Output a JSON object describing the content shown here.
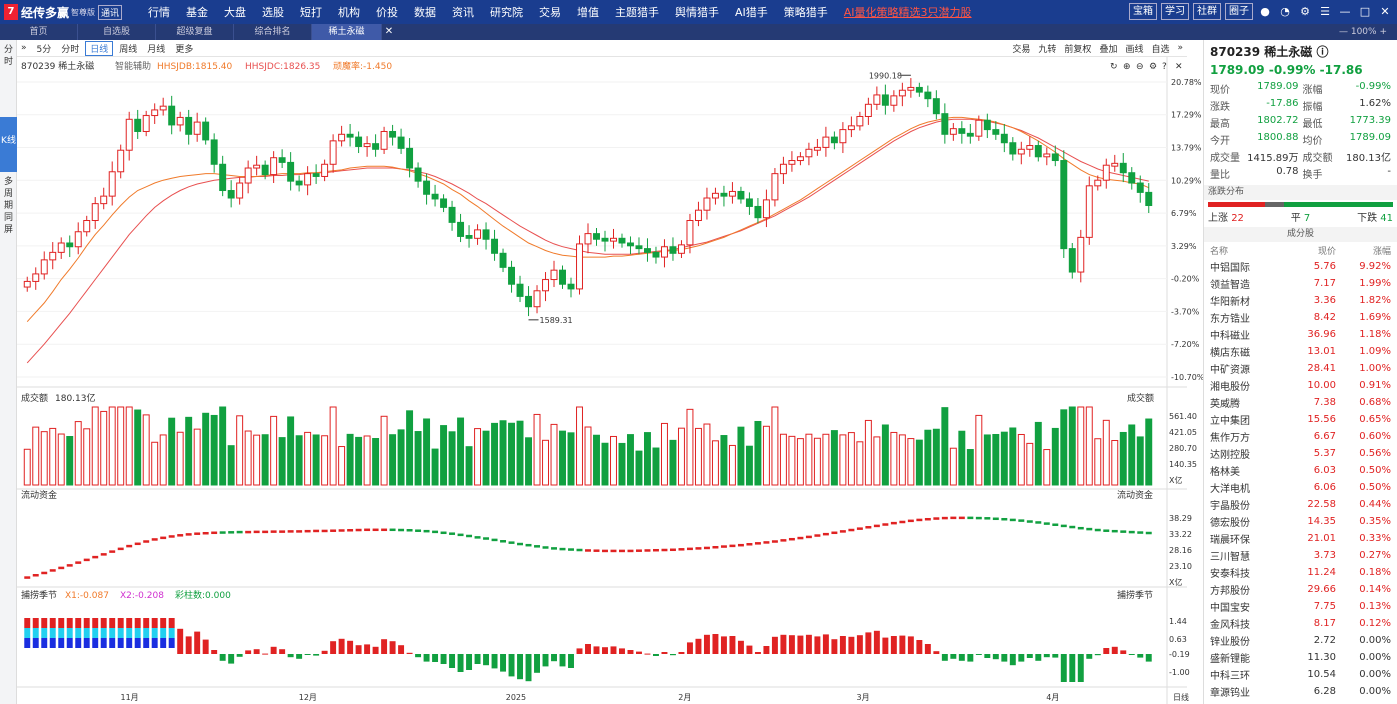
{
  "app": {
    "logo_name": "经传多赢",
    "logo_sub": "智尊版",
    "logo_tag": "通讯"
  },
  "nav": [
    "行情",
    "基金",
    "大盘",
    "选股",
    "短打",
    "机构",
    "价投",
    "数据",
    "资讯",
    "研究院",
    "交易",
    "增值",
    "主题猎手",
    "舆情猎手",
    "AI猎手",
    "策略猎手"
  ],
  "nav_hot": "AI量化策略精选3只潜力股",
  "top_buttons": [
    "宝箱",
    "学习",
    "社群",
    "圈子"
  ],
  "top_icons": [
    "user-icon",
    "bell-icon",
    "gear-icon",
    "menu-icon",
    "minimize-icon",
    "maximize-icon",
    "close-icon"
  ],
  "tabs": [
    "首页",
    "自选股",
    "超级复盘",
    "综合排名",
    "稀土永磁"
  ],
  "zoom": "100%",
  "left_tabs": [
    "分时",
    "K线",
    "多周期同屏"
  ],
  "chart_toolbar": {
    "periods": [
      "5分",
      "分时",
      "日线",
      "周线",
      "月线",
      "更多"
    ],
    "active": "日线",
    "right": [
      "交易",
      "九转",
      "前复权",
      "叠加",
      "画线",
      "自选"
    ]
  },
  "main_info": {
    "name": "870239 稀土永磁",
    "assist": "智能辅助",
    "hhsjdb": "HHSJDB:1815.40",
    "hhsjdc": "HHSJDC:1826.35",
    "zlg": "顽魔率:-1.450"
  },
  "price_axis": [
    "20.78%",
    "17.29%",
    "13.79%",
    "10.29%",
    "6.79%",
    "3.29%",
    "-0.20%",
    "-3.70%",
    "-7.20%",
    "-10.70%"
  ],
  "volume_panel": {
    "title": "成交额",
    "value": "180.13亿",
    "right_label": "成交额",
    "axis": [
      "561.40",
      "421.05",
      "280.70",
      "140.35",
      "X亿"
    ]
  },
  "flow_panel": {
    "title": "流动资金",
    "right_label": "流动资金",
    "axis": [
      "38.29",
      "33.22",
      "28.16",
      "23.10",
      "X亿"
    ]
  },
  "osc_panel": {
    "title": "捕捞季节",
    "x1": "X1:-0.087",
    "x2": "X2:-0.208",
    "bar": "彩柱数:0.000",
    "right_label": "捕捞季节",
    "axis": [
      "1.44",
      "0.63",
      "-0.19",
      "-1.00"
    ]
  },
  "date_axis": [
    "11月",
    "12月",
    "2025",
    "2月",
    "3月",
    "4月"
  ],
  "date_axis_label": "日线",
  "chart_data": {
    "type": "candlestick",
    "title": "870239 稀土永磁",
    "y_axis_percent": [
      20.78,
      17.29,
      13.79,
      10.29,
      6.79,
      3.29,
      -0.2,
      -3.7,
      -7.2,
      -10.7
    ],
    "annotations": [
      {
        "label": "1990.18",
        "type": "high"
      },
      {
        "label": "1589.31",
        "type": "low"
      }
    ],
    "closes_percent": [
      -0.5,
      0.3,
      1.8,
      2.6,
      3.6,
      3.2,
      4.8,
      6.0,
      7.8,
      8.6,
      11.2,
      13.5,
      16.8,
      15.5,
      17.2,
      17.8,
      18.2,
      16.2,
      17.0,
      15.2,
      16.5,
      14.6,
      12.0,
      9.2,
      8.4,
      10.0,
      11.6,
      11.9,
      10.9,
      12.7,
      12.2,
      10.2,
      9.8,
      11.0,
      10.7,
      12.0,
      14.5,
      15.2,
      14.9,
      13.9,
      14.2,
      13.6,
      15.5,
      14.9,
      13.7,
      11.6,
      10.2,
      8.8,
      8.3,
      7.4,
      5.8,
      4.3,
      4.1,
      5.0,
      4.0,
      2.5,
      1.0,
      -0.8,
      -2.1,
      -3.2,
      -1.5,
      -0.3,
      0.7,
      -0.8,
      -1.3,
      3.5,
      4.6,
      4.0,
      3.8,
      4.1,
      3.6,
      3.3,
      3.0,
      2.6,
      2.1,
      3.2,
      2.5,
      3.4,
      6.0,
      7.1,
      8.4,
      8.9,
      8.6,
      9.1,
      8.3,
      7.5,
      6.3,
      8.2,
      11.0,
      12.0,
      12.4,
      12.8,
      13.6,
      13.8,
      14.9,
      14.3,
      15.7,
      16.1,
      17.1,
      18.4,
      19.4,
      18.3,
      19.3,
      19.9,
      20.2,
      19.7,
      19.0,
      17.4,
      15.2,
      15.8,
      15.3,
      15.0,
      16.7,
      15.7,
      15.2,
      14.3,
      13.1,
      13.6,
      14.0,
      12.8,
      13.1,
      12.4,
      3.0,
      0.5,
      4.2,
      9.7,
      10.3,
      11.9,
      12.1,
      11.1,
      10.0,
      9.0,
      7.6
    ],
    "ma_fast_percent": [
      -4.8,
      -3.8,
      -2.8,
      -1.6,
      -0.3,
      0.8,
      2.0,
      3.3,
      4.5,
      5.5,
      6.6,
      7.6,
      8.5,
      9.2,
      9.6,
      10.0,
      10.3,
      10.5,
      10.7,
      10.8,
      10.9,
      11.0,
      11.0,
      10.9,
      10.8,
      10.7,
      10.7,
      10.7,
      10.8,
      10.9,
      11.0,
      11.0,
      11.0,
      11.1,
      11.1,
      11.2,
      11.3,
      11.4,
      11.6,
      11.7,
      11.8,
      11.8,
      11.8,
      11.7,
      11.5,
      11.3,
      11.0,
      10.7,
      10.3,
      9.9,
      9.3,
      8.8,
      8.1,
      7.5,
      6.8,
      6.1,
      5.4,
      4.8,
      4.2,
      3.6,
      3.2,
      2.8,
      2.5,
      2.3,
      2.2,
      2.1,
      2.1,
      2.1,
      2.1,
      2.2,
      2.2,
      2.3,
      2.4,
      2.5,
      2.6,
      2.7,
      2.8,
      2.9,
      3.1,
      3.3,
      3.6,
      3.9,
      4.2,
      4.6,
      5.0,
      5.4,
      5.8,
      6.2,
      6.7,
      7.2,
      7.7,
      8.2,
      8.8,
      9.4,
      10.0,
      10.6,
      11.2,
      11.8,
      12.4,
      13.0,
      13.6,
      14.2,
      14.8,
      15.3,
      15.8,
      16.2,
      16.5,
      16.7,
      16.9,
      17.0,
      17.0,
      16.9,
      16.8,
      16.7,
      16.5,
      16.2,
      15.9,
      15.5,
      15.0,
      14.5,
      13.9,
      13.3,
      12.6,
      12.0,
      11.4,
      10.9,
      10.6,
      10.4,
      10.3,
      10.2,
      10.0,
      9.9,
      9.5
    ],
    "ma_slow_percent": [
      -9.2,
      -8.2,
      -7.2,
      -6.1,
      -5.0,
      -3.9,
      -2.7,
      -1.5,
      -0.3,
      0.9,
      2.1,
      3.3,
      4.5,
      5.5,
      6.5,
      7.4,
      8.1,
      8.7,
      9.2,
      9.6,
      9.9,
      10.1,
      10.3,
      10.4,
      10.5,
      10.6,
      10.6,
      10.7,
      10.7,
      10.8,
      10.8,
      10.9,
      10.9,
      11.0,
      11.1,
      11.1,
      11.2,
      11.3,
      11.4,
      11.5,
      11.6,
      11.6,
      11.6,
      11.6,
      11.5,
      11.4,
      11.2,
      11.0,
      10.7,
      10.3,
      9.9,
      9.4,
      8.9,
      8.3,
      7.8,
      7.2,
      6.6,
      6.0,
      5.4,
      4.9,
      4.4,
      3.9,
      3.5,
      3.2,
      3.0,
      2.8,
      2.6,
      2.5,
      2.4,
      2.4,
      2.4,
      2.4,
      2.5,
      2.6,
      2.7,
      2.8,
      2.9,
      3.1,
      3.3,
      3.5,
      3.7,
      4.0,
      4.3,
      4.6,
      4.9,
      5.3,
      5.7,
      6.1,
      6.5,
      7.0,
      7.5,
      8.0,
      8.5,
      9.1,
      9.7,
      10.3,
      10.9,
      11.5,
      12.1,
      12.7,
      13.3,
      13.9,
      14.5,
      15.0,
      15.5,
      15.9,
      16.2,
      16.5,
      16.7,
      16.8,
      16.8,
      16.8,
      16.7,
      16.6,
      16.4,
      16.2,
      15.9,
      15.6,
      15.2,
      14.8,
      14.3,
      13.8,
      13.3,
      12.8,
      12.3,
      11.9,
      11.5,
      11.2,
      11.0,
      10.8,
      10.6,
      10.4,
      10.2
    ]
  },
  "stock": {
    "name": "870239 稀土永磁",
    "price": "1789.09",
    "change": "-0.99%",
    "change_abs": "-17.86"
  },
  "quote_rows": [
    [
      {
        "l": "现价",
        "v": "1789.09",
        "c": "green"
      },
      {
        "l": "涨幅",
        "v": "-0.99%",
        "c": "green"
      }
    ],
    [
      {
        "l": "涨跌",
        "v": "-17.86",
        "c": "green"
      },
      {
        "l": "振幅",
        "v": "1.62%",
        "c": ""
      }
    ],
    [
      {
        "l": "最高",
        "v": "1802.72",
        "c": "green"
      },
      {
        "l": "最低",
        "v": "1773.39",
        "c": "green"
      }
    ],
    [
      {
        "l": "今开",
        "v": "1800.88",
        "c": "green"
      },
      {
        "l": "均价",
        "v": "1789.09",
        "c": "green"
      }
    ],
    [
      {
        "l": "成交量",
        "v": "1415.89万",
        "c": ""
      },
      {
        "l": "成交额",
        "v": "180.13亿",
        "c": ""
      }
    ],
    [
      {
        "l": "量比",
        "v": "0.78",
        "c": ""
      },
      {
        "l": "换手",
        "v": "-",
        "c": ""
      }
    ]
  ],
  "distribution": {
    "title": "涨跌分布",
    "up_label": "上涨",
    "up": "22",
    "flat_label": "平",
    "flat": "7",
    "down_label": "下跌",
    "down": "41"
  },
  "components": {
    "title": "成分股",
    "headers": [
      "名称",
      "现价",
      "涨幅"
    ],
    "rows": [
      [
        "中铝国际",
        "5.76",
        "9.92%"
      ],
      [
        "领益智造",
        "7.17",
        "1.99%"
      ],
      [
        "华阳新材",
        "3.36",
        "1.82%"
      ],
      [
        "东方锆业",
        "8.42",
        "1.69%"
      ],
      [
        "中科磁业",
        "36.96",
        "1.18%"
      ],
      [
        "横店东磁",
        "13.01",
        "1.09%"
      ],
      [
        "中矿资源",
        "28.41",
        "1.00%"
      ],
      [
        "湘电股份",
        "10.00",
        "0.91%"
      ],
      [
        "英威腾",
        "7.38",
        "0.68%"
      ],
      [
        "立中集团",
        "15.56",
        "0.65%"
      ],
      [
        "焦作万方",
        "6.67",
        "0.60%"
      ],
      [
        "达刚控股",
        "5.37",
        "0.56%"
      ],
      [
        "格林美",
        "6.03",
        "0.50%"
      ],
      [
        "大洋电机",
        "6.06",
        "0.50%"
      ],
      [
        "宇晶股份",
        "22.58",
        "0.44%"
      ],
      [
        "德宏股份",
        "14.35",
        "0.35%"
      ],
      [
        "瑞晨环保",
        "21.01",
        "0.33%"
      ],
      [
        "三川智慧",
        "3.73",
        "0.27%"
      ],
      [
        "安泰科技",
        "11.24",
        "0.18%"
      ],
      [
        "方邦股份",
        "29.66",
        "0.14%"
      ],
      [
        "中国宝安",
        "7.75",
        "0.13%"
      ],
      [
        "金风科技",
        "8.17",
        "0.12%"
      ],
      [
        "锌业股份",
        "2.72",
        "0.00%"
      ],
      [
        "盛新锂能",
        "11.30",
        "0.00%"
      ],
      [
        "中科三环",
        "10.54",
        "0.00%"
      ],
      [
        "章源钨业",
        "6.28",
        "0.00%"
      ]
    ]
  },
  "colors": {
    "up": "#e02222",
    "down": "#11a040",
    "ma_fast": "#f07a2a",
    "ma_slow": "#e85050",
    "nav_bg": "#1a3d8f"
  }
}
